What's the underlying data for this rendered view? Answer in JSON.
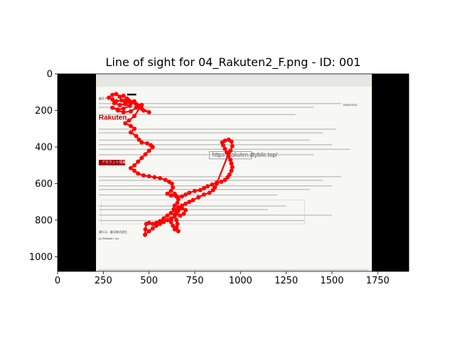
{
  "chart_data": {
    "type": "scatter",
    "title": "Line of sight for 04_Rakuten2_F.png - ID: 001",
    "xlabel": "",
    "ylabel": "",
    "xlim": [
      0,
      1920
    ],
    "ylim": [
      1080,
      0
    ],
    "x_ticks": [
      0,
      250,
      500,
      750,
      1000,
      1250,
      1500,
      1750
    ],
    "y_ticks": [
      0,
      200,
      400,
      600,
      800,
      1000
    ],
    "grid": false,
    "background_image": {
      "extent_x": [
        0,
        1920
      ],
      "extent_y": [
        0,
        1080
      ],
      "content_x": [
        210,
        1718
      ],
      "content_y": [
        0,
        1080
      ]
    },
    "series": [
      {
        "color": "#ff0000",
        "points": [
          [
            280,
            130
          ],
          [
            300,
            115
          ],
          [
            320,
            110
          ],
          [
            340,
            125
          ],
          [
            360,
            120
          ],
          [
            380,
            135
          ],
          [
            350,
            145
          ],
          [
            320,
            150
          ],
          [
            300,
            140
          ],
          [
            310,
            160
          ],
          [
            340,
            170
          ],
          [
            370,
            165
          ],
          [
            395,
            175
          ],
          [
            360,
            190
          ],
          [
            330,
            195
          ],
          [
            300,
            185
          ],
          [
            330,
            200
          ],
          [
            360,
            210
          ],
          [
            400,
            205
          ],
          [
            430,
            185
          ],
          [
            460,
            190
          ],
          [
            470,
            200
          ],
          [
            500,
            210
          ],
          [
            440,
            175
          ],
          [
            420,
            150
          ],
          [
            390,
            145
          ],
          [
            370,
            155
          ],
          [
            400,
            160
          ],
          [
            430,
            165
          ],
          [
            460,
            170
          ],
          [
            420,
            230
          ],
          [
            390,
            255
          ],
          [
            370,
            270
          ],
          [
            400,
            285
          ],
          [
            420,
            300
          ],
          [
            400,
            320
          ],
          [
            430,
            340
          ],
          [
            445,
            360
          ],
          [
            460,
            375
          ],
          [
            490,
            380
          ],
          [
            510,
            390
          ],
          [
            520,
            400
          ],
          [
            500,
            420
          ],
          [
            480,
            440
          ],
          [
            460,
            460
          ],
          [
            440,
            480
          ],
          [
            420,
            500
          ],
          [
            400,
            515
          ],
          [
            420,
            530
          ],
          [
            440,
            545
          ],
          [
            470,
            555
          ],
          [
            500,
            560
          ],
          [
            530,
            565
          ],
          [
            560,
            570
          ],
          [
            590,
            580
          ],
          [
            610,
            590
          ],
          [
            625,
            600
          ],
          [
            630,
            620
          ],
          [
            620,
            640
          ],
          [
            600,
            655
          ],
          [
            620,
            665
          ],
          [
            650,
            670
          ],
          [
            680,
            670
          ],
          [
            700,
            660
          ],
          [
            720,
            650
          ],
          [
            750,
            640
          ],
          [
            780,
            635
          ],
          [
            800,
            625
          ],
          [
            820,
            615
          ],
          [
            845,
            605
          ],
          [
            870,
            595
          ],
          [
            895,
            590
          ],
          [
            915,
            580
          ],
          [
            930,
            565
          ],
          [
            940,
            550
          ],
          [
            950,
            530
          ],
          [
            955,
            510
          ],
          [
            950,
            490
          ],
          [
            945,
            470
          ],
          [
            935,
            450
          ],
          [
            925,
            430
          ],
          [
            915,
            410
          ],
          [
            905,
            390
          ],
          [
            900,
            375
          ],
          [
            915,
            365
          ],
          [
            935,
            360
          ],
          [
            950,
            370
          ],
          [
            955,
            395
          ],
          [
            945,
            420
          ],
          [
            935,
            435
          ],
          [
            870,
            600
          ],
          [
            860,
            620
          ],
          [
            850,
            635
          ],
          [
            830,
            650
          ],
          [
            800,
            660
          ],
          [
            770,
            675
          ],
          [
            740,
            690
          ],
          [
            720,
            700
          ],
          [
            700,
            710
          ],
          [
            680,
            720
          ],
          [
            660,
            730
          ],
          [
            640,
            745
          ],
          [
            620,
            760
          ],
          [
            600,
            775
          ],
          [
            580,
            790
          ],
          [
            560,
            805
          ],
          [
            540,
            815
          ],
          [
            520,
            820
          ],
          [
            500,
            815
          ],
          [
            485,
            820
          ],
          [
            480,
            850
          ],
          [
            478,
            880
          ],
          [
            500,
            860
          ],
          [
            520,
            845
          ],
          [
            540,
            830
          ],
          [
            560,
            820
          ],
          [
            580,
            810
          ],
          [
            600,
            800
          ],
          [
            620,
            790
          ],
          [
            640,
            780
          ],
          [
            650,
            800
          ],
          [
            655,
            820
          ],
          [
            650,
            840
          ],
          [
            660,
            860
          ],
          [
            640,
            850
          ],
          [
            630,
            830
          ],
          [
            620,
            810
          ],
          [
            640,
            770
          ],
          [
            660,
            750
          ],
          [
            680,
            735
          ],
          [
            700,
            745
          ],
          [
            690,
            765
          ],
          [
            670,
            775
          ],
          [
            650,
            765
          ],
          [
            635,
            740
          ],
          [
            640,
            720
          ],
          [
            655,
            705
          ],
          [
            660,
            685
          ],
          [
            650,
            668
          ],
          [
            640,
            655
          ]
        ]
      }
    ]
  },
  "image": {
    "url_text": "https://rakuten.dtybile.top/",
    "logo_text": "Rakuten",
    "button_label": "アカウント情報に移動",
    "company": "発行元：楽天株式会社",
    "company_en": "(c) Rakuten, Inc.",
    "mail_subject": "楽天アカウント",
    "date_text": "2020/10/22"
  }
}
